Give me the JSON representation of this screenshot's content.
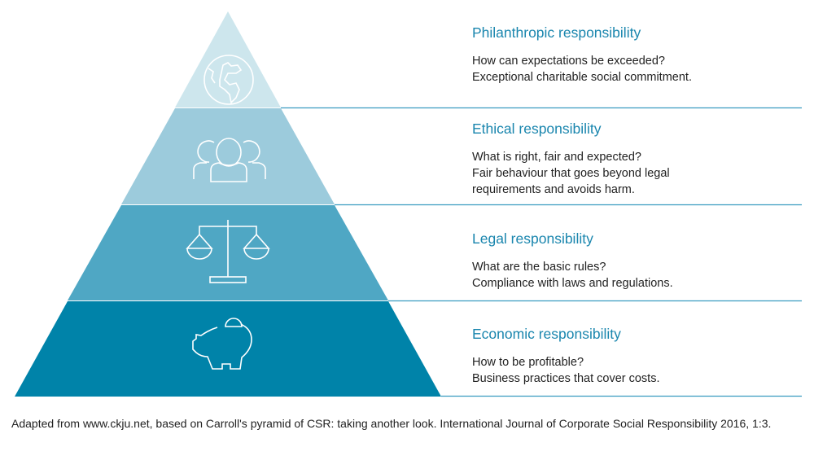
{
  "levels": [
    {
      "title": "Philanthropic responsibility",
      "question": "How can expectations be exceeded?",
      "description": "Exceptional charitable social commitment.",
      "icon": "globe-icon",
      "color": "#cde6ed"
    },
    {
      "title": "Ethical responsibility",
      "question": "What is right, fair and expected?",
      "description": "Fair behaviour that goes beyond legal requirements and avoids harm.",
      "icon": "people-icon",
      "color": "#9ccbdc"
    },
    {
      "title": "Legal responsibility",
      "question": "What are the basic rules?",
      "description": "Compliance with laws and regulations.",
      "icon": "scales-icon",
      "color": "#4fa7c4"
    },
    {
      "title": "Economic responsibility",
      "question": "How to be profitable?",
      "description": "Business practices that cover costs.",
      "icon": "piggy-bank-icon",
      "color": "#0083a9"
    }
  ],
  "source": "Adapted from www.ckju.net, based on Carroll's pyramid of CSR: taking another look. International Journal of Corporate Social Responsibility 2016, 1:3."
}
